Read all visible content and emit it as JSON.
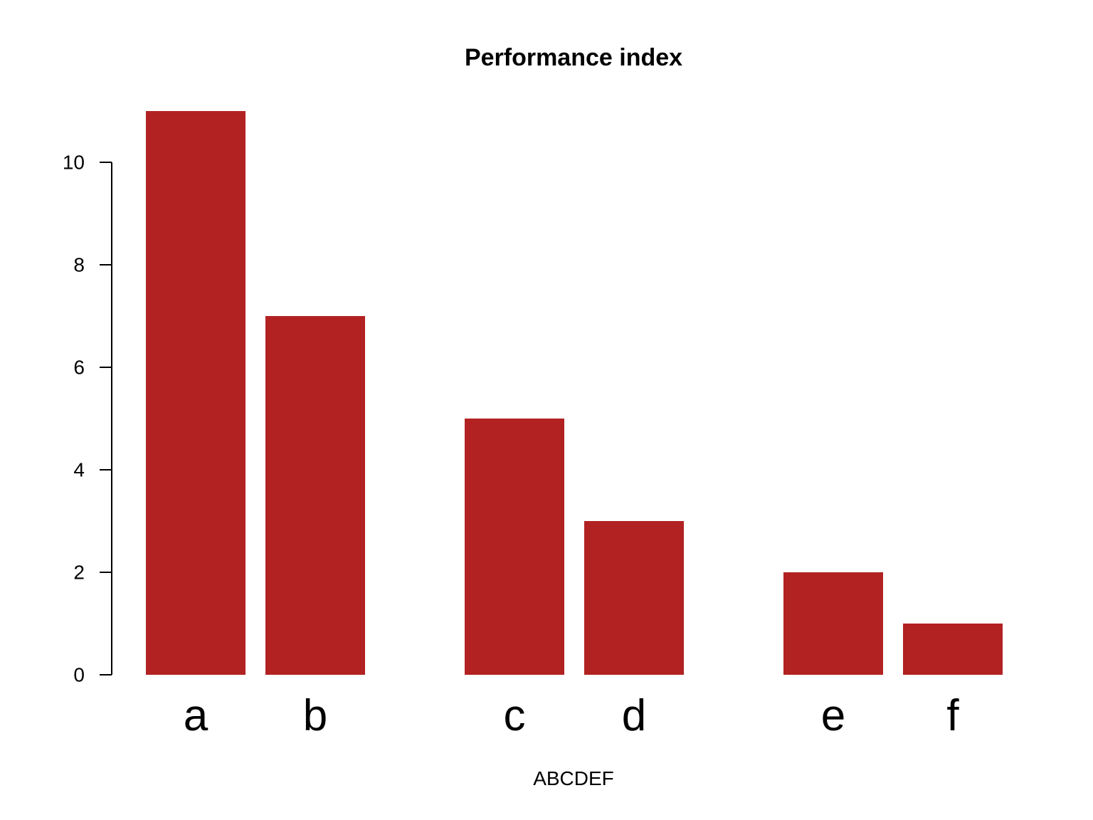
{
  "chart_data": {
    "type": "bar",
    "title": "Performance index",
    "xlabel": "ABCDEF",
    "ylabel": "",
    "categories": [
      "a",
      "b",
      "c",
      "d",
      "e",
      "f"
    ],
    "values": [
      11,
      7,
      5,
      3,
      2,
      1
    ],
    "groups": [
      [
        "a",
        "b"
      ],
      [
        "c",
        "d"
      ],
      [
        "e",
        "f"
      ]
    ],
    "ylim": [
      0,
      11
    ],
    "yticks": [
      0,
      2,
      4,
      6,
      8,
      10
    ],
    "bar_color": "#b22222",
    "grid": false,
    "legend": "none"
  }
}
